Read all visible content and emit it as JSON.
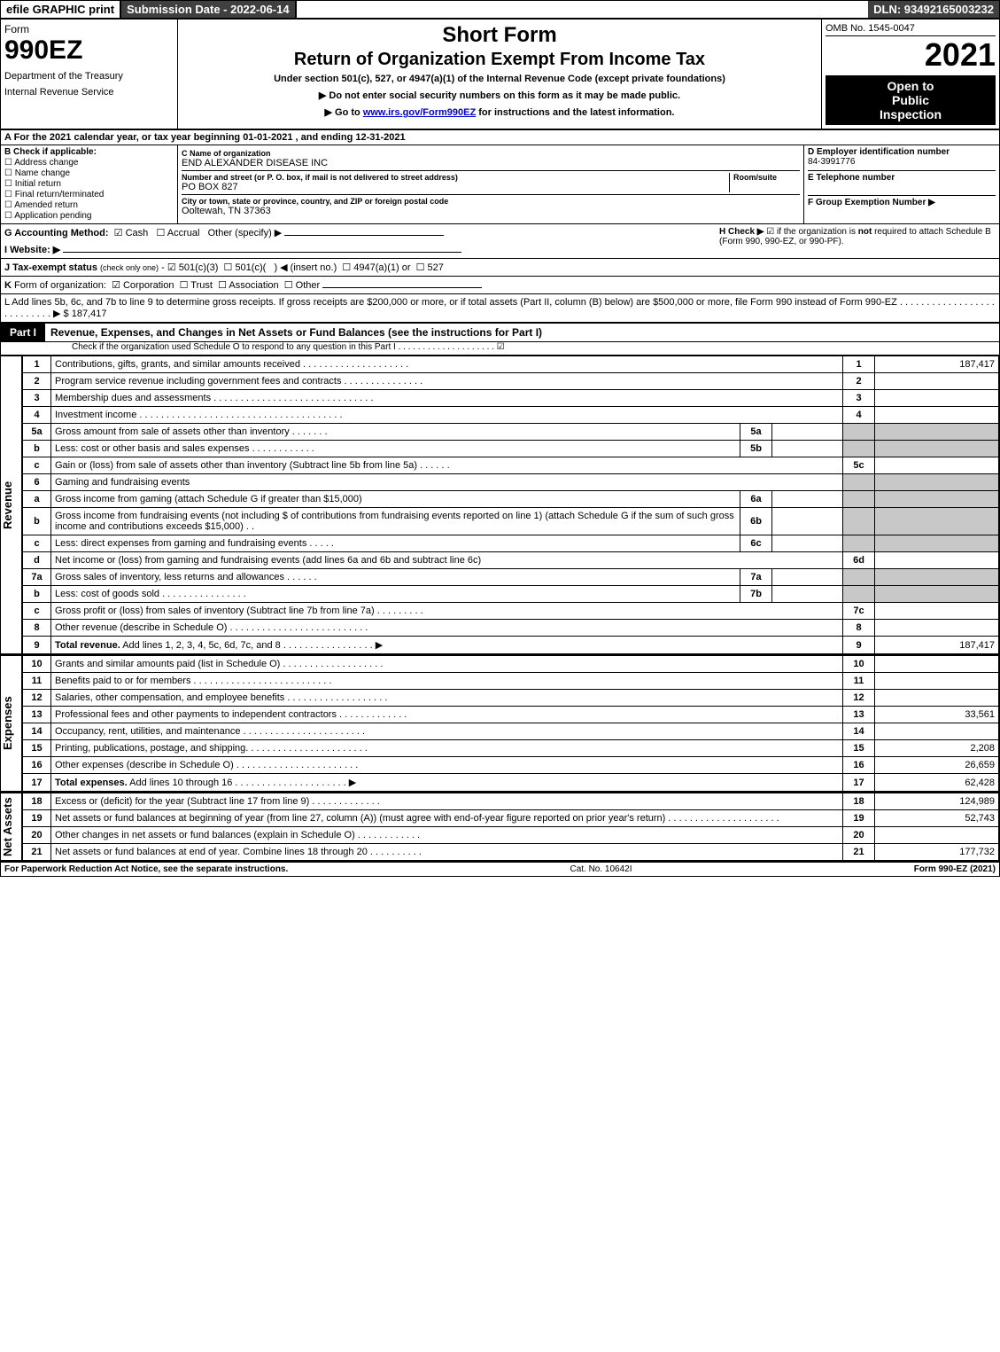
{
  "topbar": {
    "efile": "efile GRAPHIC print",
    "submission_label": "Submission Date - 2022-06-14",
    "dln": "DLN: 93492165003232"
  },
  "header": {
    "form_word": "Form",
    "form_number": "990EZ",
    "dept1": "Department of the Treasury",
    "dept2": "Internal Revenue Service",
    "title1": "Short Form",
    "title2": "Return of Organization Exempt From Income Tax",
    "subtitle": "Under section 501(c), 527, or 4947(a)(1) of the Internal Revenue Code (except private foundations)",
    "warn1": "▶ Do not enter social security numbers on this form as it may be made public.",
    "warn2": "▶ Go to ",
    "irslink": "www.irs.gov/Form990EZ",
    "warn2b": " for instructions and the latest information.",
    "omb": "OMB No. 1545-0047",
    "year": "2021",
    "open1": "Open to",
    "open2": "Public",
    "open3": "Inspection"
  },
  "row_a": "A  For the 2021 calendar year, or tax year beginning 01-01-2021 , and ending 12-31-2021",
  "section_b": {
    "hdr": "B  Check if applicable:",
    "opts": [
      "Address change",
      "Name change",
      "Initial return",
      "Final return/terminated",
      "Amended return",
      "Application pending"
    ],
    "c_lbl": "C Name of organization",
    "c_val": "END ALEXANDER DISEASE INC",
    "addr_lbl": "Number and street (or P. O. box, if mail is not delivered to street address)",
    "room_lbl": "Room/suite",
    "addr_val": "PO BOX 827",
    "city_lbl": "City or town, state or province, country, and ZIP or foreign postal code",
    "city_val": "Ooltewah, TN  37363",
    "d_lbl": "D Employer identification number",
    "d_val": "84-3991776",
    "e_lbl": "E Telephone number",
    "f_lbl": "F Group Exemption Number  ▶"
  },
  "row_g": {
    "lbl": "G Accounting Method:",
    "cash": "Cash",
    "accrual": "Accrual",
    "other": "Other (specify) ▶"
  },
  "row_h": {
    "lbl": "H  Check ▶",
    "txt": "if the organization is ",
    "not": "not",
    "txt2": " required to attach Schedule B (Form 990, 990-EZ, or 990-PF)."
  },
  "row_i": "I Website: ▶",
  "row_j": "J Tax-exempt status (check only one) - ☑ 501(c)(3)  ☐ 501(c)(  ) ◀ (insert no.)  ☐ 4947(a)(1) or  ☐ 527",
  "row_k": "K Form of organization:  ☑ Corporation  ☐ Trust  ☐ Association  ☐ Other",
  "row_l": {
    "txt": "L Add lines 5b, 6c, and 7b to line 9 to determine gross receipts. If gross receipts are $200,000 or more, or if total assets (Part II, column (B) below) are $500,000 or more, file Form 990 instead of Form 990-EZ  .  .  .  .  .  .  .  .  .  .  .  .  .  .  .  .  .  .  .  .  .  .  .  .  .  .  .  ▶ $ ",
    "val": "187,417"
  },
  "part1": {
    "tag": "Part I",
    "title": "Revenue, Expenses, and Changes in Net Assets or Fund Balances (see the instructions for Part I)",
    "sub": "Check if the organization used Schedule O to respond to any question in this Part I  .  .  .  .  .  .  .  .  .  .  .  .  .  .  .  .  .  .  .  .  ☑"
  },
  "vlabels": {
    "revenue": "Revenue",
    "expenses": "Expenses",
    "netassets": "Net Assets"
  },
  "revenue_lines": [
    {
      "n": "1",
      "desc": "Contributions, gifts, grants, and similar amounts received  .  .  .  .  .  .  .  .  .  .  .  .  .  .  .  .  .  .  .  .",
      "rn": "1",
      "amt": "187,417"
    },
    {
      "n": "2",
      "desc": "Program service revenue including government fees and contracts  .  .  .  .  .  .  .  .  .  .  .  .  .  .  .",
      "rn": "2",
      "amt": ""
    },
    {
      "n": "3",
      "desc": "Membership dues and assessments  .  .  .  .  .  .  .  .  .  .  .  .  .  .  .  .  .  .  .  .  .  .  .  .  .  .  .  .  .  .",
      "rn": "3",
      "amt": ""
    },
    {
      "n": "4",
      "desc": "Investment income  .  .  .  .  .  .  .  .  .  .  .  .  .  .  .  .  .  .  .  .  .  .  .  .  .  .  .  .  .  .  .  .  .  .  .  .  .  .",
      "rn": "4",
      "amt": ""
    },
    {
      "n": "5a",
      "desc": "Gross amount from sale of assets other than inventory  .  .  .  .  .  .  .",
      "sub": "5a",
      "subval": "",
      "shade": true
    },
    {
      "n": "b",
      "desc": "Less: cost or other basis and sales expenses  .  .  .  .  .  .  .  .  .  .  .  .",
      "sub": "5b",
      "subval": "",
      "shade": true
    },
    {
      "n": "c",
      "desc": "Gain or (loss) from sale of assets other than inventory (Subtract line 5b from line 5a)  .  .  .  .  .  .",
      "rn": "5c",
      "amt": ""
    },
    {
      "n": "6",
      "desc": "Gaming and fundraising events",
      "shade": true
    },
    {
      "n": "a",
      "desc": "Gross income from gaming (attach Schedule G if greater than $15,000)",
      "sub": "6a",
      "subval": "",
      "shade": true
    },
    {
      "n": "b",
      "desc": "Gross income from fundraising events (not including $                       of contributions from fundraising events reported on line 1) (attach Schedule G if the sum of such gross income and contributions exceeds $15,000)    .   .",
      "sub": "6b",
      "subval": "",
      "shade": true
    },
    {
      "n": "c",
      "desc": "Less: direct expenses from gaming and fundraising events    .  .  .  .  .",
      "sub": "6c",
      "subval": "",
      "shade": true
    },
    {
      "n": "d",
      "desc": "Net income or (loss) from gaming and fundraising events (add lines 6a and 6b and subtract line 6c)",
      "rn": "6d",
      "amt": ""
    },
    {
      "n": "7a",
      "desc": "Gross sales of inventory, less returns and allowances  .  .  .  .  .  .",
      "sub": "7a",
      "subval": "",
      "shade": true
    },
    {
      "n": "b",
      "desc": "Less: cost of goods sold       .  .  .  .  .  .  .  .  .  .  .  .  .  .  .  .",
      "sub": "7b",
      "subval": "",
      "shade": true
    },
    {
      "n": "c",
      "desc": "Gross profit or (loss) from sales of inventory (Subtract line 7b from line 7a)  .  .  .  .  .  .  .  .  .",
      "rn": "7c",
      "amt": ""
    },
    {
      "n": "8",
      "desc": "Other revenue (describe in Schedule O)  .  .  .  .  .  .  .  .  .  .  .  .  .  .  .  .  .  .  .  .  .  .  .  .  .  .",
      "rn": "8",
      "amt": ""
    },
    {
      "n": "9",
      "desc": "Total revenue. Add lines 1, 2, 3, 4, 5c, 6d, 7c, and 8   .  .  .  .  .  .  .  .  .  .  .  .  .  .  .  .  .   ▶",
      "rn": "9",
      "amt": "187,417",
      "bold": true
    }
  ],
  "expense_lines": [
    {
      "n": "10",
      "desc": "Grants and similar amounts paid (list in Schedule O)  .  .  .  .  .  .  .  .  .  .  .  .  .  .  .  .  .  .  .",
      "rn": "10",
      "amt": ""
    },
    {
      "n": "11",
      "desc": "Benefits paid to or for members      .  .  .  .  .  .  .  .  .  .  .  .  .  .  .  .  .  .  .  .  .  .  .  .  .  .",
      "rn": "11",
      "amt": ""
    },
    {
      "n": "12",
      "desc": "Salaries, other compensation, and employee benefits  .  .  .  .  .  .  .  .  .  .  .  .  .  .  .  .  .  .  .",
      "rn": "12",
      "amt": ""
    },
    {
      "n": "13",
      "desc": "Professional fees and other payments to independent contractors  .  .  .  .  .  .  .  .  .  .  .  .  .",
      "rn": "13",
      "amt": "33,561"
    },
    {
      "n": "14",
      "desc": "Occupancy, rent, utilities, and maintenance .  .  .  .  .  .  .  .  .  .  .  .  .  .  .  .  .  .  .  .  .  .  .",
      "rn": "14",
      "amt": ""
    },
    {
      "n": "15",
      "desc": "Printing, publications, postage, and shipping.  .  .  .  .  .  .  .  .  .  .  .  .  .  .  .  .  .  .  .  .  .  .",
      "rn": "15",
      "amt": "2,208"
    },
    {
      "n": "16",
      "desc": "Other expenses (describe in Schedule O)     .  .  .  .  .  .  .  .  .  .  .  .  .  .  .  .  .  .  .  .  .  .  .",
      "rn": "16",
      "amt": "26,659"
    },
    {
      "n": "17",
      "desc": "Total expenses. Add lines 10 through 16     .  .  .  .  .  .  .  .  .  .  .  .  .  .  .  .  .  .  .  .  .  ▶",
      "rn": "17",
      "amt": "62,428",
      "bold": true
    }
  ],
  "netasset_lines": [
    {
      "n": "18",
      "desc": "Excess or (deficit) for the year (Subtract line 17 from line 9)       .  .  .  .  .  .  .  .  .  .  .  .  .",
      "rn": "18",
      "amt": "124,989"
    },
    {
      "n": "19",
      "desc": "Net assets or fund balances at beginning of year (from line 27, column (A)) (must agree with end-of-year figure reported on prior year's return) .  .  .  .  .  .  .  .  .  .  .  .  .  .  .  .  .  .  .  .  .",
      "rn": "19",
      "amt": "52,743"
    },
    {
      "n": "20",
      "desc": "Other changes in net assets or fund balances (explain in Schedule O)  .  .  .  .  .  .  .  .  .  .  .  .",
      "rn": "20",
      "amt": ""
    },
    {
      "n": "21",
      "desc": "Net assets or fund balances at end of year. Combine lines 18 through 20  .  .  .  .  .  .  .  .  .  .",
      "rn": "21",
      "amt": "177,732"
    }
  ],
  "footer": {
    "left": "For Paperwork Reduction Act Notice, see the separate instructions.",
    "mid": "Cat. No. 10642I",
    "right_a": "Form ",
    "right_b": "990-EZ",
    "right_c": " (2021)"
  }
}
